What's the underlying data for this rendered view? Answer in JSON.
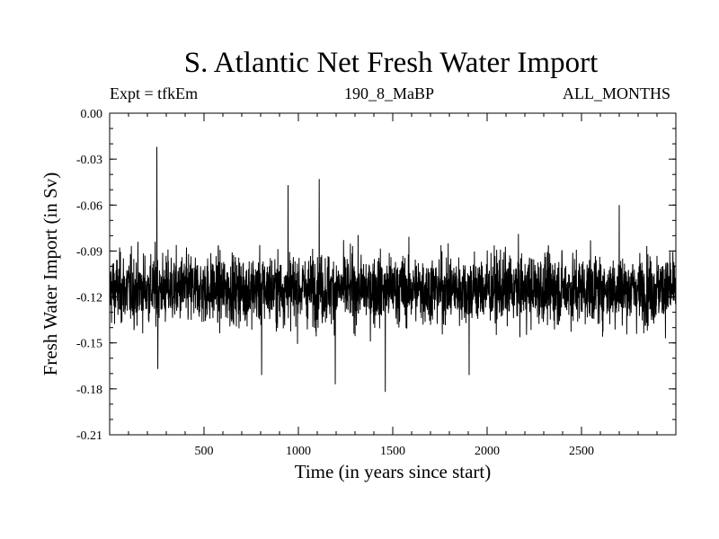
{
  "chart_data": {
    "type": "line",
    "title": "S. Atlantic Net Fresh Water Import",
    "subtitle_left": "Expt = tfkEm",
    "subtitle_center": "190_8_MaBP",
    "subtitle_right": "ALL_MONTHS",
    "xlabel": "Time (in years since start)",
    "ylabel": "Fresh Water Import (in Sv)",
    "xlim": [
      0,
      3000
    ],
    "ylim": [
      -0.21,
      0.0
    ],
    "xticks": [
      500,
      1000,
      1500,
      2000,
      2500
    ],
    "yticks": [
      "0.00",
      "-0.03",
      "-0.06",
      "-0.09",
      "-0.12",
      "-0.15",
      "-0.18",
      "-0.21"
    ],
    "grid": false,
    "series": [
      {
        "color": "#000000",
        "mean": -0.115,
        "spread": 0.015,
        "n_points": 3000,
        "notable_points": [
          {
            "x": 250,
            "y": -0.022
          },
          {
            "x": 945,
            "y": -0.047
          },
          {
            "x": 1110,
            "y": -0.043
          },
          {
            "x": 1460,
            "y": -0.182
          },
          {
            "x": 1195,
            "y": -0.177
          },
          {
            "x": 255,
            "y": -0.167
          },
          {
            "x": 805,
            "y": -0.171
          },
          {
            "x": 2700,
            "y": -0.06
          },
          {
            "x": 1905,
            "y": -0.171
          }
        ]
      }
    ]
  }
}
